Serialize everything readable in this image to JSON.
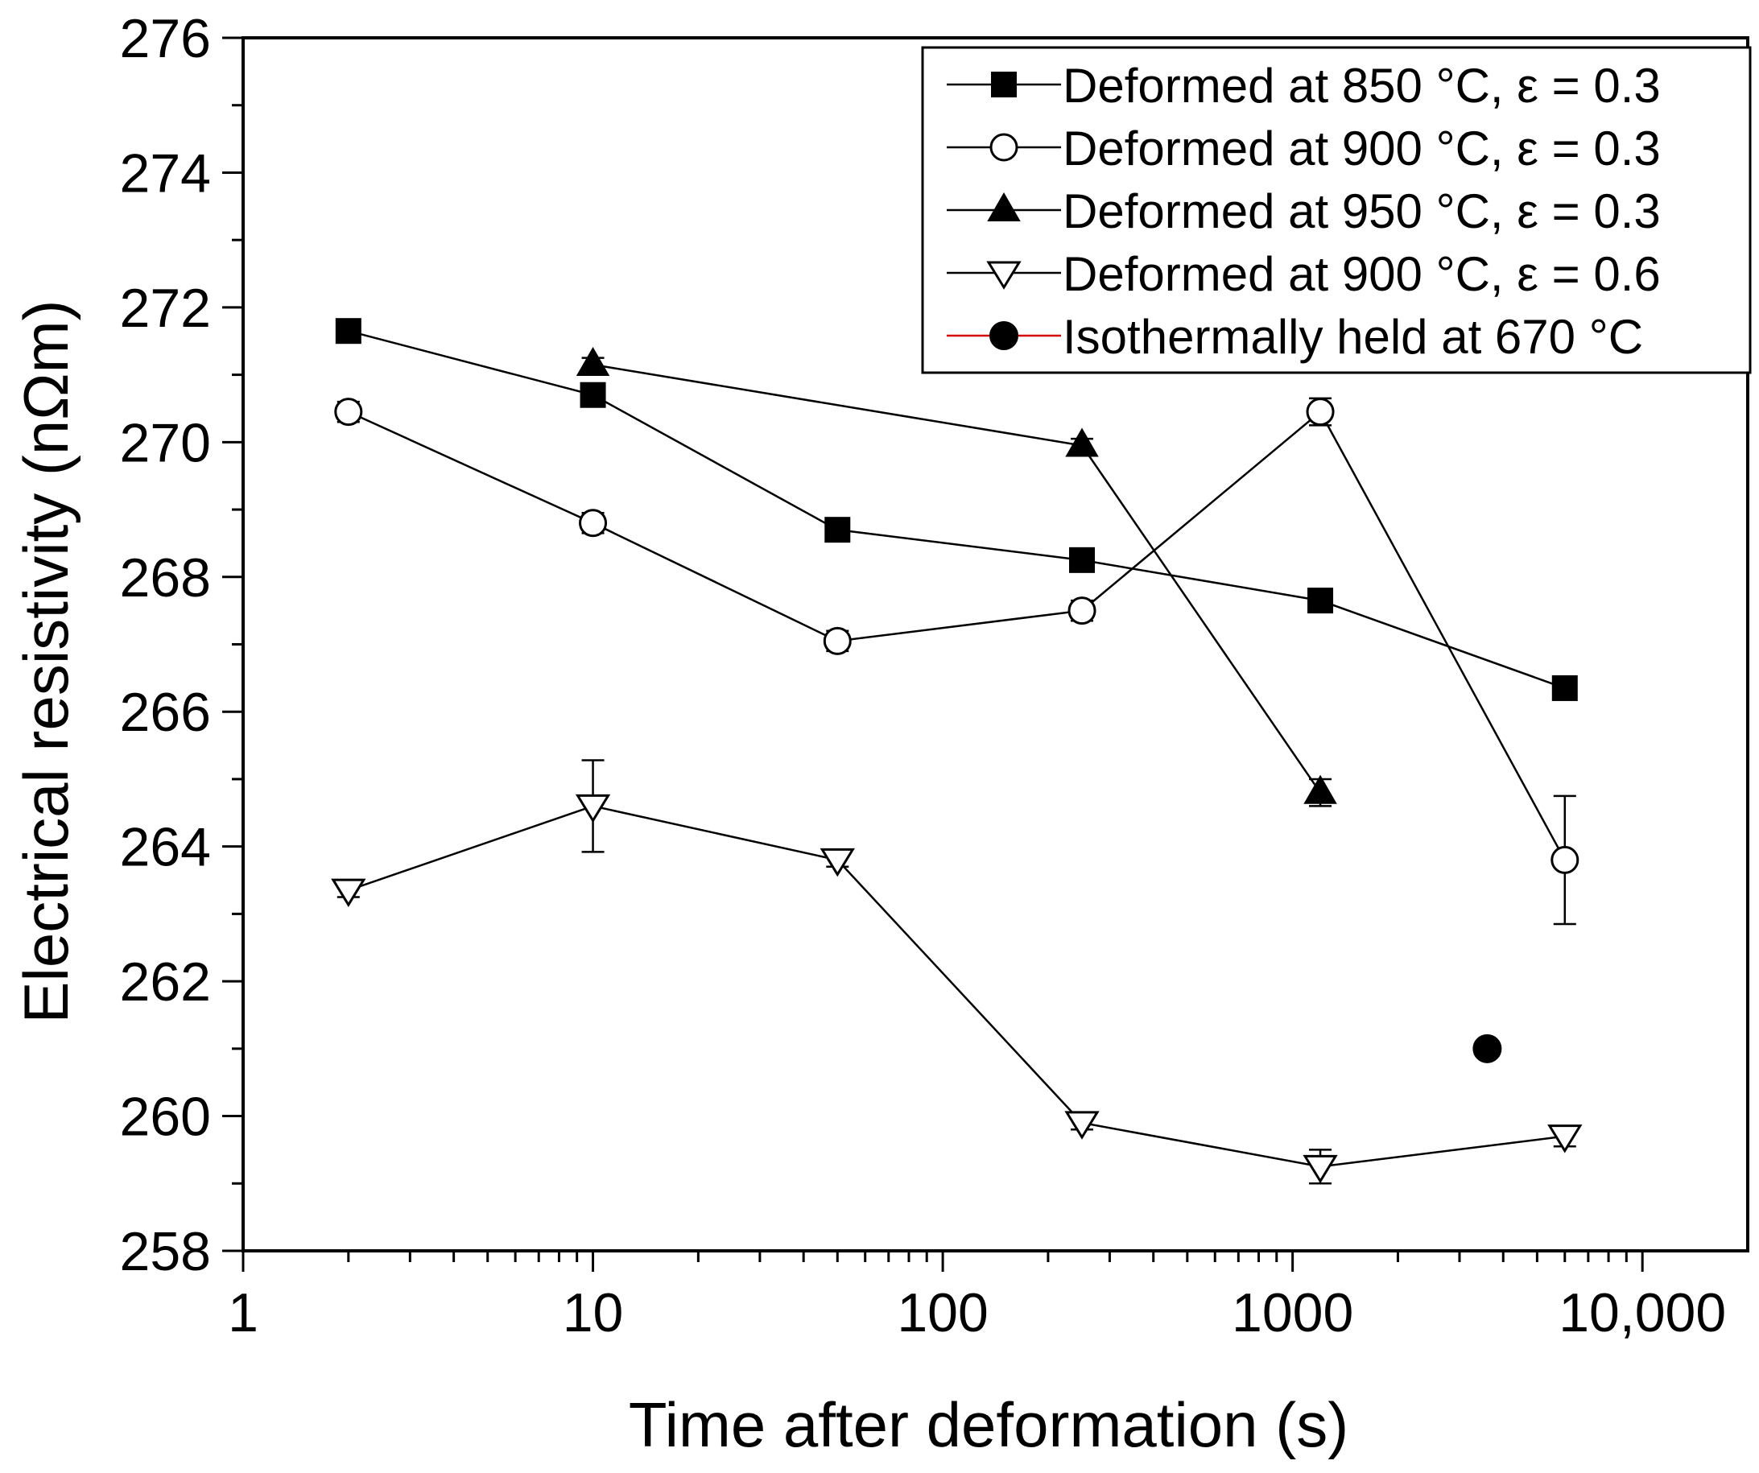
{
  "chart_data": {
    "type": "scatter",
    "title": "",
    "xlabel": "Time after deformation (s)",
    "ylabel": "Electrical resistivity (nΩm)",
    "xscale": "log",
    "xlim": [
      1,
      20000
    ],
    "ylim": [
      258,
      276
    ],
    "xticks": [
      {
        "value": 1,
        "label": "1"
      },
      {
        "value": 10,
        "label": "10"
      },
      {
        "value": 100,
        "label": "100"
      },
      {
        "value": 1000,
        "label": "1000"
      },
      {
        "value": 10000,
        "label": "10,000"
      }
    ],
    "yticks": [
      {
        "value": 258,
        "label": "258"
      },
      {
        "value": 260,
        "label": "260"
      },
      {
        "value": 262,
        "label": "262"
      },
      {
        "value": 264,
        "label": "264"
      },
      {
        "value": 266,
        "label": "266"
      },
      {
        "value": 268,
        "label": "268"
      },
      {
        "value": 270,
        "label": "270"
      },
      {
        "value": 272,
        "label": "272"
      },
      {
        "value": 274,
        "label": "274"
      },
      {
        "value": 276,
        "label": "276"
      }
    ],
    "grid": false,
    "legend_position": "top-right",
    "series": [
      {
        "name": "Deformed at 850 °C, ε = 0.3",
        "marker": "square-filled",
        "line_color": "#000000",
        "x": [
          2,
          10,
          50,
          250,
          1200,
          6000
        ],
        "y": [
          271.65,
          270.7,
          268.7,
          268.25,
          267.65,
          266.35
        ],
        "yerr": [
          0.1,
          0.1,
          0.1,
          0.1,
          0.1,
          0.1
        ]
      },
      {
        "name": "Deformed at 900 °C, ε = 0.3",
        "marker": "circle-open",
        "line_color": "#000000",
        "x": [
          2,
          10,
          50,
          250,
          1200,
          6000
        ],
        "y": [
          270.45,
          268.8,
          267.05,
          267.5,
          270.45,
          263.8
        ],
        "yerr": [
          0.15,
          0.15,
          0.15,
          0.15,
          0.2,
          0.95
        ]
      },
      {
        "name": "Deformed at 950 °C, ε = 0.3",
        "marker": "triangle-up-filled",
        "line_color": "#000000",
        "x": [
          10,
          250,
          1200
        ],
        "y": [
          271.15,
          269.95,
          264.8
        ],
        "yerr": [
          0.1,
          0.1,
          0.2
        ]
      },
      {
        "name": "Deformed at 900 °C, ε = 0.6",
        "marker": "triangle-down-open",
        "line_color": "#000000",
        "x": [
          2,
          10,
          50,
          250,
          1200,
          6000
        ],
        "y": [
          263.35,
          264.6,
          263.8,
          259.9,
          259.25,
          259.7
        ],
        "yerr": [
          0.1,
          0.68,
          0.1,
          0.1,
          0.25,
          0.15
        ]
      },
      {
        "name": "Isothermally held at 670 °C",
        "marker": "circle-filled",
        "line_color": "#d40000",
        "x": [
          3600
        ],
        "y": [
          261.0
        ],
        "yerr": [
          0
        ]
      }
    ]
  }
}
